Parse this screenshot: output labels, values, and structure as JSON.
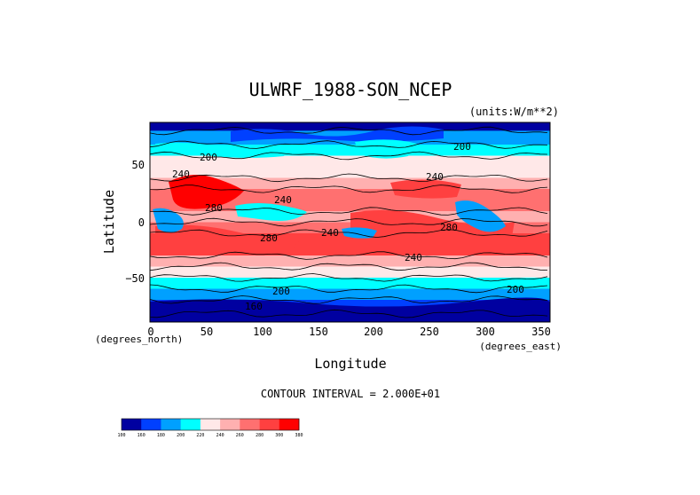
{
  "chart_data": {
    "type": "heatmap",
    "title": "ULWRF_1988-SON_NCEP",
    "units": "(units:W/m**2)",
    "xlabel": "Longitude",
    "ylabel": "Latitude",
    "x_unit_note": "(degrees_east)",
    "y_unit_note": "(degrees_north)",
    "xlim": [
      0,
      357.5
    ],
    "ylim": [
      -90,
      90
    ],
    "x_ticks": [
      "0",
      "50",
      "100",
      "150",
      "200",
      "250",
      "300",
      "350"
    ],
    "y_ticks": [
      "50",
      "0",
      "−50"
    ],
    "contour_interval_text": "CONTOUR INTERVAL = 2.000E+01",
    "contour_labels": [
      "200",
      "200",
      "240",
      "240",
      "240",
      "280",
      "280",
      "280",
      "240",
      "240",
      "200",
      "200",
      "160"
    ],
    "colorbar": {
      "levels": [
        "100",
        "160",
        "180",
        "200",
        "220",
        "240",
        "260",
        "280",
        "300",
        "380"
      ],
      "colors": [
        "#0000a0",
        "#0040ff",
        "#00a0ff",
        "#00ffff",
        "#ffe8e8",
        "#ffb0b0",
        "#ff7070",
        "#ff4040",
        "#ff0000"
      ]
    },
    "lat_profile": [
      {
        "lat": 90,
        "value": 150
      },
      {
        "lat": 75,
        "value": 190
      },
      {
        "lat": 65,
        "value": 205
      },
      {
        "lat": 55,
        "value": 222
      },
      {
        "lat": 45,
        "value": 238
      },
      {
        "lat": 35,
        "value": 255
      },
      {
        "lat": 25,
        "value": 275
      },
      {
        "lat": 15,
        "value": 262
      },
      {
        "lat": 5,
        "value": 245
      },
      {
        "lat": -5,
        "value": 260
      },
      {
        "lat": -15,
        "value": 282
      },
      {
        "lat": -25,
        "value": 280
      },
      {
        "lat": -35,
        "value": 258
      },
      {
        "lat": -45,
        "value": 232
      },
      {
        "lat": -55,
        "value": 210
      },
      {
        "lat": -65,
        "value": 195
      },
      {
        "lat": -75,
        "value": 165
      },
      {
        "lat": -90,
        "value": 140
      }
    ]
  }
}
